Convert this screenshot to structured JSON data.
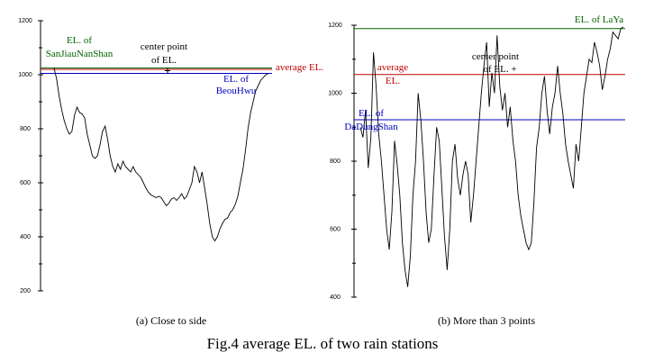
{
  "figure_title": "Fig.4     average EL. of two rain stations",
  "chart_data": [
    {
      "type": "line",
      "caption": "(a) Close to side",
      "ylim": [
        200,
        1200
      ],
      "y_ticks": [
        {
          "value": 200,
          "label": "200"
        },
        {
          "value": 400,
          "label": "400"
        },
        {
          "value": 600,
          "label": "600"
        },
        {
          "value": 800,
          "label": "800"
        },
        {
          "value": 1000,
          "label": "1000"
        },
        {
          "value": 1200,
          "label": "1200"
        }
      ],
      "x": [
        0,
        1,
        2,
        3,
        4,
        5,
        6,
        7,
        8,
        9,
        10,
        11,
        12,
        13,
        14,
        15,
        16,
        17,
        18,
        19,
        20,
        21,
        22,
        23,
        24,
        25,
        26,
        27,
        28,
        29,
        30,
        31,
        32,
        33,
        34,
        35,
        36,
        37,
        38,
        39,
        40,
        41,
        42,
        43,
        44,
        45,
        46,
        47,
        48,
        49,
        50,
        51,
        52,
        53,
        54,
        55,
        56,
        57,
        58,
        59,
        60,
        61,
        62,
        63,
        64,
        65,
        66,
        67,
        68,
        69,
        70,
        71,
        72,
        73,
        74,
        75,
        76,
        77,
        78,
        79,
        80,
        81,
        82,
        83,
        84,
        85,
        86,
        87,
        88,
        89,
        90,
        91,
        92,
        93,
        94,
        95,
        96,
        97,
        98,
        99,
        100
      ],
      "series": [
        {
          "values": [
            1025,
            985,
            920,
            870,
            830,
            800,
            780,
            790,
            850,
            880,
            860,
            855,
            840,
            780,
            740,
            700,
            690,
            700,
            740,
            790,
            810,
            760,
            700,
            660,
            640,
            670,
            650,
            680,
            660,
            650,
            640,
            660,
            640,
            630,
            620,
            600,
            580,
            565,
            555,
            550,
            545,
            550,
            545,
            530,
            515,
            525,
            540,
            545,
            535,
            545,
            560,
            540,
            550,
            575,
            600,
            660,
            640,
            600,
            640,
            580,
            520,
            450,
            400,
            385,
            400,
            430,
            450,
            465,
            470,
            490,
            500,
            520,
            550,
            600,
            650,
            720,
            800,
            860,
            900,
            940,
            960,
            980,
            990,
            1000,
            1005,
            1005,
            1005,
            1005,
            1005,
            1005,
            1005,
            1005,
            1005,
            1005,
            1005,
            1005,
            1005,
            1005,
            1005,
            1005,
            1005
          ]
        }
      ],
      "reference_lines": [
        {
          "name": "EL. of SanJiauNanShan",
          "value": 1025,
          "color": "#006400"
        },
        {
          "name": "average EL.",
          "value": 1020,
          "color": "#c00000"
        },
        {
          "name": "EL. of BeouHwu",
          "value": 1005,
          "color": "#0000c0"
        },
        {
          "name": "center point of EL.",
          "value": 1015,
          "color": "#000000"
        }
      ],
      "annotations": [
        {
          "text": "EL. of",
          "color": "#006400"
        },
        {
          "text": "SanJiauNanShan",
          "color": "#006400"
        },
        {
          "text": "center point",
          "color": "#000000"
        },
        {
          "text": "of EL.",
          "color": "#000000"
        },
        {
          "text": "average EL.",
          "color": "#c00000"
        },
        {
          "text": "EL. of",
          "color": "#0000c0"
        },
        {
          "text": "BeouHwu",
          "color": "#0000c0"
        }
      ]
    },
    {
      "type": "line",
      "caption": "(b) More than 3 points",
      "ylim": [
        400,
        1200
      ],
      "y_ticks": [
        {
          "value": 400,
          "label": "400"
        },
        {
          "value": 600,
          "label": "600"
        },
        {
          "value": 800,
          "label": "800"
        },
        {
          "value": 1000,
          "label": "1000"
        },
        {
          "value": 1200,
          "label": "1200"
        }
      ],
      "x": [
        0,
        1,
        2,
        3,
        4,
        5,
        6,
        7,
        8,
        9,
        10,
        11,
        12,
        13,
        14,
        15,
        16,
        17,
        18,
        19,
        20,
        21,
        22,
        23,
        24,
        25,
        26,
        27,
        28,
        29,
        30,
        31,
        32,
        33,
        34,
        35,
        36,
        37,
        38,
        39,
        40,
        41,
        42,
        43,
        44,
        45,
        46,
        47,
        48,
        49,
        50,
        51,
        52,
        53,
        54,
        55,
        56,
        57,
        58,
        59,
        60,
        61,
        62,
        63,
        64,
        65,
        66,
        67,
        68,
        69,
        70,
        71,
        72,
        73,
        74,
        75,
        76,
        77,
        78,
        79,
        80,
        81,
        82,
        83,
        84,
        85,
        86,
        87,
        88,
        89,
        90,
        91,
        92,
        93,
        94,
        95,
        96,
        97,
        98,
        99,
        100
      ],
      "series": [
        {
          "values": [
            900,
            870,
            950,
            780,
            870,
            1120,
            1020,
            880,
            800,
            700,
            600,
            540,
            650,
            860,
            790,
            700,
            560,
            480,
            430,
            520,
            700,
            800,
            1000,
            920,
            800,
            650,
            560,
            600,
            760,
            900,
            860,
            720,
            580,
            480,
            600,
            800,
            850,
            750,
            700,
            760,
            800,
            760,
            620,
            700,
            800,
            900,
            1000,
            1080,
            1150,
            960,
            1060,
            1000,
            1170,
            1020,
            950,
            1000,
            900,
            960,
            860,
            800,
            700,
            640,
            600,
            560,
            540,
            560,
            680,
            840,
            900,
            1000,
            1050,
            950,
            880,
            960,
            1000,
            1080,
            1000,
            940,
            850,
            800,
            760,
            720,
            850,
            800,
            900,
            1000,
            1050,
            1100,
            1090,
            1150,
            1120,
            1080,
            1010,
            1050,
            1100,
            1130,
            1180,
            1170,
            1160,
            1190,
            1195
          ]
        }
      ],
      "reference_lines": [
        {
          "name": "EL. of LaYa",
          "value": 1190,
          "color": "#006400"
        },
        {
          "name": "average EL.",
          "value": 1055,
          "color": "#c00000"
        },
        {
          "name": "EL. of DaDungShan",
          "value": 922,
          "color": "#0000c0"
        }
      ],
      "annotations": [
        {
          "text": "EL. of LaYa",
          "color": "#006400"
        },
        {
          "text": "average",
          "color": "#c00000"
        },
        {
          "text": "EL.",
          "color": "#c00000"
        },
        {
          "text": "center point",
          "color": "#000000"
        },
        {
          "text": "of EL. +",
          "color": "#000000"
        },
        {
          "text": "EL. of",
          "color": "#0000c0"
        },
        {
          "text": "DaDungShan",
          "color": "#0000c0"
        }
      ]
    }
  ]
}
